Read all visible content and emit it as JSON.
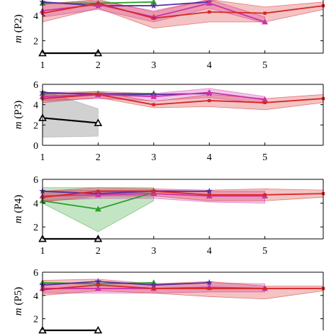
{
  "chart_data": [
    {
      "type": "line",
      "ylabel": "m (P2)",
      "xlim": [
        1,
        6.05
      ],
      "ylim": [
        1.0,
        5.6
      ],
      "xticks": [
        1,
        2,
        3,
        4,
        5
      ],
      "yticks": [
        2,
        4
      ],
      "panel_top_visible": false,
      "series": [
        {
          "color": "#000000",
          "marker": "triangle",
          "x": [
            1,
            2
          ],
          "y": [
            1.0,
            1.0
          ]
        },
        {
          "color": "#2ca02c",
          "marker": "triangle",
          "x": [
            1,
            2,
            3
          ],
          "y": [
            5.0,
            5.0,
            5.1
          ]
        },
        {
          "color": "#5a2ca0",
          "marker": "star",
          "x": [
            1,
            2,
            3,
            4
          ],
          "y": [
            5.1,
            4.8,
            4.8,
            5.1
          ]
        },
        {
          "color": "#cc33aa",
          "marker": "triangle",
          "x": [
            1,
            2,
            3,
            4,
            5
          ],
          "y": [
            4.4,
            4.9,
            3.9,
            5.0,
            3.5
          ],
          "band": [
            [
              3.9,
              5.0
            ],
            [
              4.5,
              5.2
            ],
            [
              3.5,
              4.4
            ],
            [
              4.6,
              5.3
            ],
            [
              3.4,
              3.9
            ]
          ]
        },
        {
          "color": "#d62728",
          "marker": "square",
          "x": [
            1,
            2,
            3,
            4,
            5,
            6.05
          ],
          "y": [
            4.2,
            5.0,
            3.8,
            4.3,
            4.2,
            4.8
          ],
          "band": [
            [
              3.5,
              4.9
            ],
            [
              4.6,
              5.3
            ],
            [
              3.0,
              4.3
            ],
            [
              3.5,
              5.3
            ],
            [
              3.5,
              4.7
            ],
            [
              4.5,
              5.1
            ]
          ]
        }
      ]
    },
    {
      "type": "line",
      "ylabel": "m (P3)",
      "xlim": [
        1,
        6.05
      ],
      "ylim": [
        0,
        6
      ],
      "xticks": [
        1,
        2,
        3,
        4,
        5
      ],
      "yticks": [
        0,
        2,
        4,
        6
      ],
      "series": [
        {
          "color": "#000000",
          "marker": "triangle",
          "x": [
            1,
            2
          ],
          "y": [
            2.7,
            2.2
          ],
          "band": [
            [
              0.8,
              5.4
            ],
            [
              0.9,
              3.6
            ]
          ]
        },
        {
          "color": "#2ca02c",
          "marker": "triangle",
          "x": [
            1,
            2,
            3
          ],
          "y": [
            5.1,
            5.1,
            5.1
          ]
        },
        {
          "color": "#5a2ca0",
          "marker": "star",
          "x": [
            1,
            2,
            3,
            4
          ],
          "y": [
            5.2,
            5.0,
            5.0,
            5.1
          ]
        },
        {
          "color": "#cc33aa",
          "marker": "triangle",
          "x": [
            1,
            2,
            3,
            4,
            5
          ],
          "y": [
            4.8,
            5.0,
            4.8,
            5.2,
            4.5
          ],
          "band": [
            [
              4.4,
              5.2
            ],
            [
              4.6,
              5.3
            ],
            [
              4.4,
              5.1
            ],
            [
              4.7,
              5.6
            ],
            [
              4.1,
              4.8
            ]
          ]
        },
        {
          "color": "#d62728",
          "marker": "square",
          "x": [
            1,
            2,
            3,
            4,
            5,
            6.05
          ],
          "y": [
            4.6,
            5.0,
            4.0,
            4.4,
            4.2,
            4.6
          ],
          "band": [
            [
              4.2,
              5.0
            ],
            [
              4.7,
              5.3
            ],
            [
              3.7,
              4.3
            ],
            [
              3.8,
              5.0
            ],
            [
              3.5,
              4.6
            ],
            [
              4.2,
              5.0
            ]
          ]
        }
      ]
    },
    {
      "type": "line",
      "ylabel": "m (P4)",
      "xlim": [
        1,
        6.05
      ],
      "ylim": [
        1.0,
        6.0
      ],
      "xticks": [
        1,
        2,
        3,
        4,
        5
      ],
      "yticks": [
        2,
        4,
        6
      ],
      "series": [
        {
          "color": "#000000",
          "marker": "triangle",
          "x": [
            1,
            2
          ],
          "y": [
            1.0,
            1.0
          ]
        },
        {
          "color": "#2ca02c",
          "marker": "triangle",
          "x": [
            1,
            2,
            3
          ],
          "y": [
            4.2,
            3.5,
            4.9
          ],
          "band": [
            [
              4.0,
              5.3
            ],
            [
              1.6,
              5.3
            ],
            [
              4.2,
              5.3
            ]
          ]
        },
        {
          "color": "#5a2ca0",
          "marker": "star",
          "x": [
            1,
            2,
            3,
            4
          ],
          "y": [
            5.0,
            4.8,
            5.0,
            5.0
          ]
        },
        {
          "color": "#cc33aa",
          "marker": "triangle",
          "x": [
            1,
            2,
            3,
            4,
            5
          ],
          "y": [
            4.6,
            4.7,
            4.8,
            4.6,
            4.6
          ],
          "band": [
            [
              4.2,
              5.0
            ],
            [
              4.4,
              5.1
            ],
            [
              4.4,
              5.1
            ],
            [
              4.1,
              5.0
            ],
            [
              4.0,
              5.0
            ]
          ]
        },
        {
          "color": "#d62728",
          "marker": "square",
          "x": [
            1,
            2,
            3,
            4,
            5,
            6.05
          ],
          "y": [
            4.5,
            5.0,
            5.0,
            4.7,
            4.7,
            4.8
          ],
          "band": [
            [
              4.1,
              5.0
            ],
            [
              4.6,
              5.3
            ],
            [
              4.6,
              5.2
            ],
            [
              4.2,
              5.1
            ],
            [
              4.2,
              5.2
            ],
            [
              4.5,
              5.1
            ]
          ]
        }
      ]
    },
    {
      "type": "line",
      "ylabel": "m (P5)",
      "xlim": [
        1,
        6.05
      ],
      "ylim": [
        1.0,
        6.0
      ],
      "xticks": [],
      "yticks": [
        2,
        4,
        6
      ],
      "panel_bottom_visible": false,
      "series": [
        {
          "color": "#000000",
          "marker": "triangle",
          "x": [
            1,
            2
          ],
          "y": [
            1.0,
            1.0
          ]
        },
        {
          "color": "#2ca02c",
          "marker": "triangle",
          "x": [
            1,
            2,
            3
          ],
          "y": [
            5.1,
            5.0,
            5.1
          ]
        },
        {
          "color": "#5a2ca0",
          "marker": "star",
          "x": [
            1,
            2,
            3,
            4
          ],
          "y": [
            4.9,
            5.2,
            4.9,
            5.1
          ]
        },
        {
          "color": "#cc33aa",
          "marker": "triangle",
          "x": [
            1,
            2,
            3,
            4,
            5
          ],
          "y": [
            4.6,
            4.6,
            4.6,
            4.7,
            4.6
          ],
          "band": [
            [
              4.2,
              5.0
            ],
            [
              4.2,
              5.0
            ],
            [
              4.2,
              5.0
            ],
            [
              4.3,
              5.1
            ],
            [
              4.3,
              5.0
            ]
          ]
        },
        {
          "color": "#d62728",
          "marker": "square",
          "x": [
            1,
            2,
            3,
            4,
            5,
            6.05
          ],
          "y": [
            4.5,
            4.9,
            4.6,
            4.6,
            4.6,
            4.6
          ],
          "band": [
            [
              4.0,
              5.3
            ],
            [
              4.4,
              5.4
            ],
            [
              4.2,
              5.0
            ],
            [
              3.9,
              5.2
            ],
            [
              3.7,
              4.8
            ],
            [
              4.4,
              4.8
            ]
          ]
        }
      ]
    }
  ]
}
